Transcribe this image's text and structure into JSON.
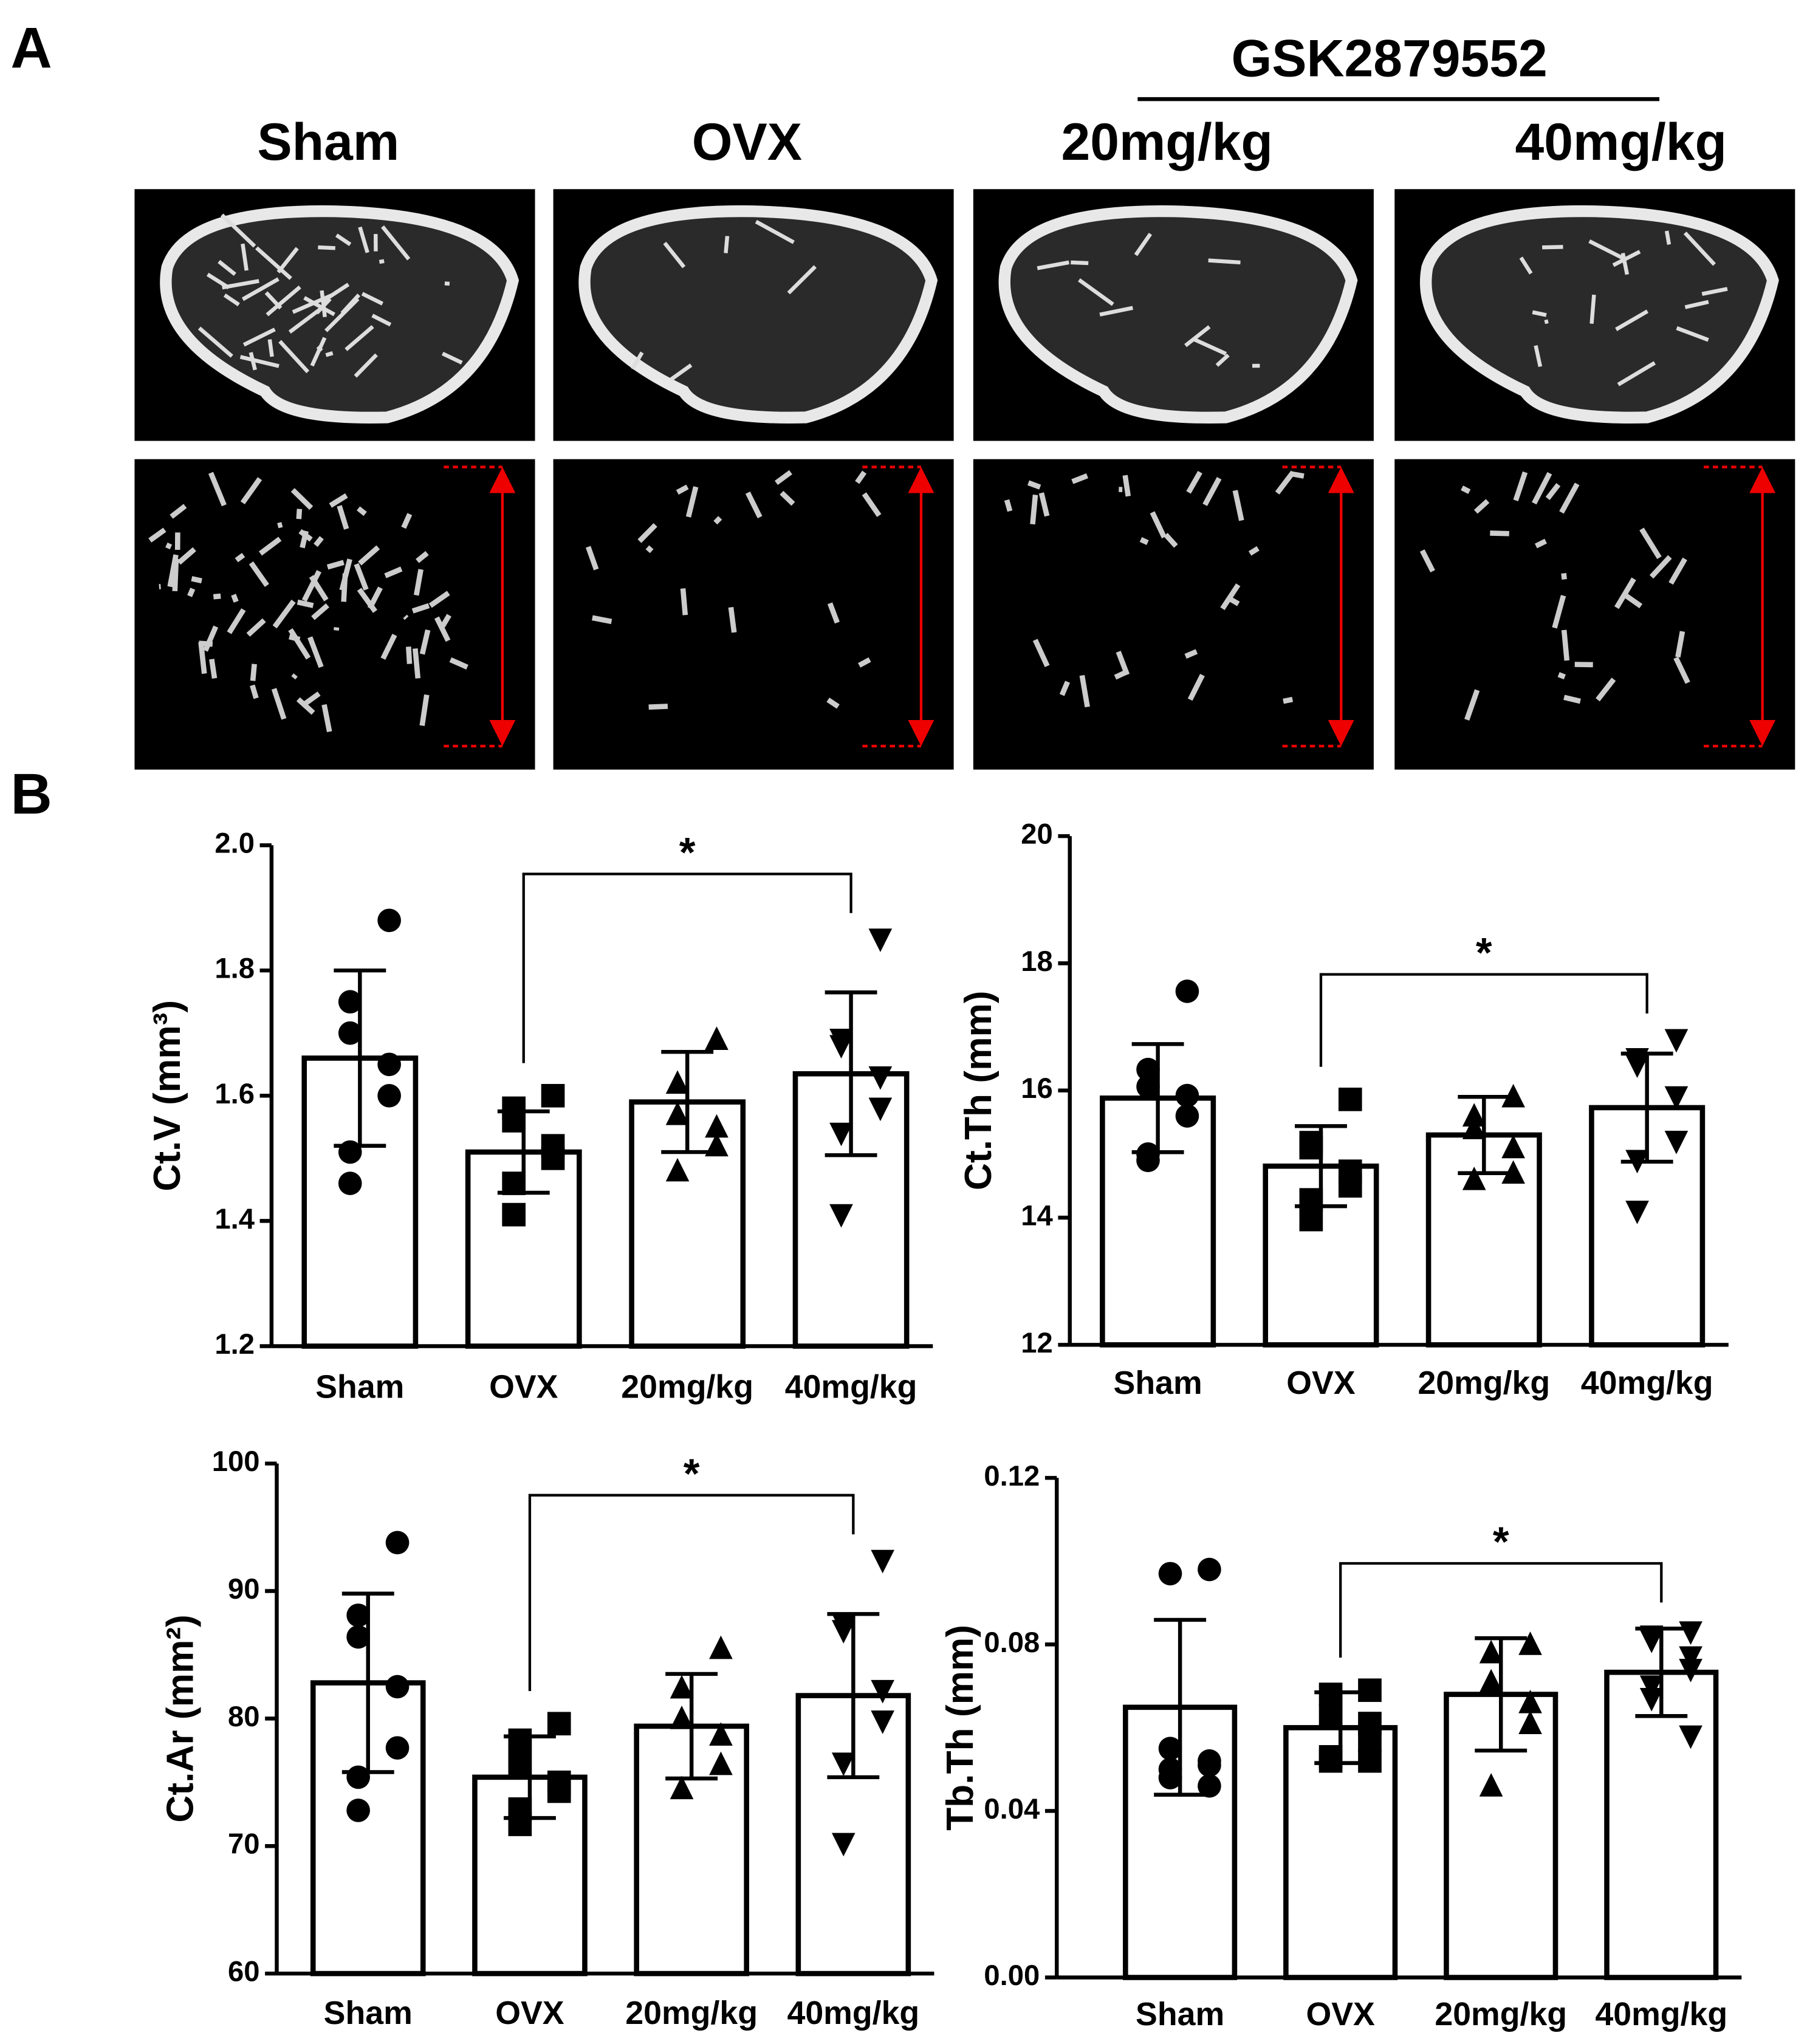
{
  "panel_a": {
    "label": "A",
    "treatment": "GSK2879552",
    "groups": [
      "Sham",
      "OVX",
      "20mg/kg",
      "40mg/kg"
    ]
  },
  "panel_b": {
    "label": "B"
  },
  "chart_data": [
    {
      "type": "bar",
      "ylabel": "Ct.V (mm³)",
      "categories": [
        "Sham",
        "OVX",
        "20mg/kg",
        "40mg/kg"
      ],
      "values": [
        1.66,
        1.51,
        1.59,
        1.635
      ],
      "errors": [
        0.14,
        0.065,
        0.08,
        0.13
      ],
      "points": [
        [
          1.88,
          1.75,
          1.7,
          1.65,
          1.6,
          1.51,
          1.46
        ],
        [
          1.6,
          1.58,
          1.56,
          1.52,
          1.5,
          1.46,
          1.41
        ],
        [
          1.69,
          1.62,
          1.57,
          1.55,
          1.52,
          1.48
        ],
        [
          1.85,
          1.69,
          1.68,
          1.63,
          1.58,
          1.54,
          1.41
        ]
      ],
      "markers": [
        "circle",
        "square",
        "triangle-up",
        "triangle-down"
      ],
      "color": "#ffffff",
      "edge_color": "#000000",
      "marker_color": "#000000",
      "ylim": [
        1.2,
        2
      ],
      "yticks": [
        1.2,
        1.4,
        1.6,
        1.8,
        {
          "value": 2,
          "label": "2.0"
        }
      ],
      "significance": [
        {
          "groups": [
            "OVX",
            "40mg/kg"
          ],
          "label": "*"
        }
      ]
    },
    {
      "type": "bar",
      "ylabel": "Ct.Th (mm)",
      "categories": [
        "Sham",
        "OVX",
        "20mg/kg",
        "40mg/kg"
      ],
      "values": [
        15.88,
        14.81,
        15.3,
        15.73
      ],
      "errors": [
        0.85,
        0.63,
        0.6,
        0.85
      ],
      "points": [
        [
          17.56,
          16.33,
          16.06,
          15.92,
          15.6,
          15.0,
          14.9
        ],
        [
          15.86,
          15.18,
          15.1,
          14.73,
          14.5,
          14.28,
          13.97
        ],
        [
          15.9,
          15.6,
          15.4,
          15.1,
          14.7,
          14.6
        ],
        [
          16.8,
          16.5,
          16.4,
          15.9,
          15.2,
          14.9,
          14.1
        ]
      ],
      "markers": [
        "circle",
        "square",
        "triangle-up",
        "triangle-down"
      ],
      "color": "#ffffff",
      "edge_color": "#000000",
      "marker_color": "#000000",
      "ylim": [
        12,
        20
      ],
      "yticks": [
        12,
        14,
        16,
        18,
        20
      ],
      "significance": [
        {
          "groups": [
            "OVX",
            "40mg/kg"
          ],
          "label": "*"
        }
      ]
    },
    {
      "type": "bar",
      "ylabel": "Ct.Ar (mm²)",
      "categories": [
        "Sham",
        "OVX",
        "20mg/kg",
        "40mg/kg"
      ],
      "values": [
        82.8,
        75.4,
        79.4,
        81.8
      ],
      "errors": [
        7,
        3.2,
        4.1,
        6.4
      ],
      "points": [
        [
          93.8,
          88.1,
          86.4,
          82.5,
          77.7,
          75.4,
          72.8
        ],
        [
          79.6,
          78.3,
          76.5,
          75.0,
          74.3,
          72.9,
          71.7
        ],
        [
          85.5,
          82.4,
          80.0,
          78.7,
          76.4,
          74.5
        ],
        [
          92.4,
          87.4,
          86.9,
          82.2,
          79.8,
          76.5,
          70.2
        ]
      ],
      "markers": [
        "circle",
        "square",
        "triangle-up",
        "triangle-down"
      ],
      "color": "#ffffff",
      "edge_color": "#000000",
      "marker_color": "#000000",
      "ylim": [
        60,
        100
      ],
      "yticks": [
        60,
        70,
        80,
        90,
        100
      ],
      "significance": [
        {
          "groups": [
            "OVX",
            "40mg/kg"
          ],
          "label": "*"
        }
      ]
    },
    {
      "type": "bar",
      "ylabel": "Tb.Th (mm)",
      "categories": [
        "Sham",
        "OVX",
        "20mg/kg",
        "40mg/kg"
      ],
      "values": [
        0.0649,
        0.06,
        0.068,
        0.0733
      ],
      "errors": [
        0.021,
        0.0085,
        0.0135,
        0.0105
      ],
      "points": [
        [
          0.098,
          0.097,
          0.055,
          0.052,
          0.051,
          0.05,
          0.048,
          0.046
        ],
        [
          0.069,
          0.068,
          0.063,
          0.061,
          0.057,
          0.053,
          0.052,
          0.052
        ],
        [
          0.08,
          0.078,
          0.071,
          0.066,
          0.061,
          0.046
        ],
        [
          0.083,
          0.082,
          0.081,
          0.077,
          0.074,
          0.07,
          0.067,
          0.058
        ]
      ],
      "markers": [
        "circle",
        "square",
        "triangle-up",
        "triangle-down"
      ],
      "color": "#ffffff",
      "edge_color": "#000000",
      "marker_color": "#000000",
      "ylim": [
        0,
        0.12
      ],
      "yticks": [
        {
          "value": 0,
          "label": "0.00"
        },
        0.04,
        0.08,
        0.12
      ],
      "significance": [
        {
          "groups": [
            "OVX",
            "40mg/kg"
          ],
          "label": "*"
        }
      ]
    }
  ]
}
